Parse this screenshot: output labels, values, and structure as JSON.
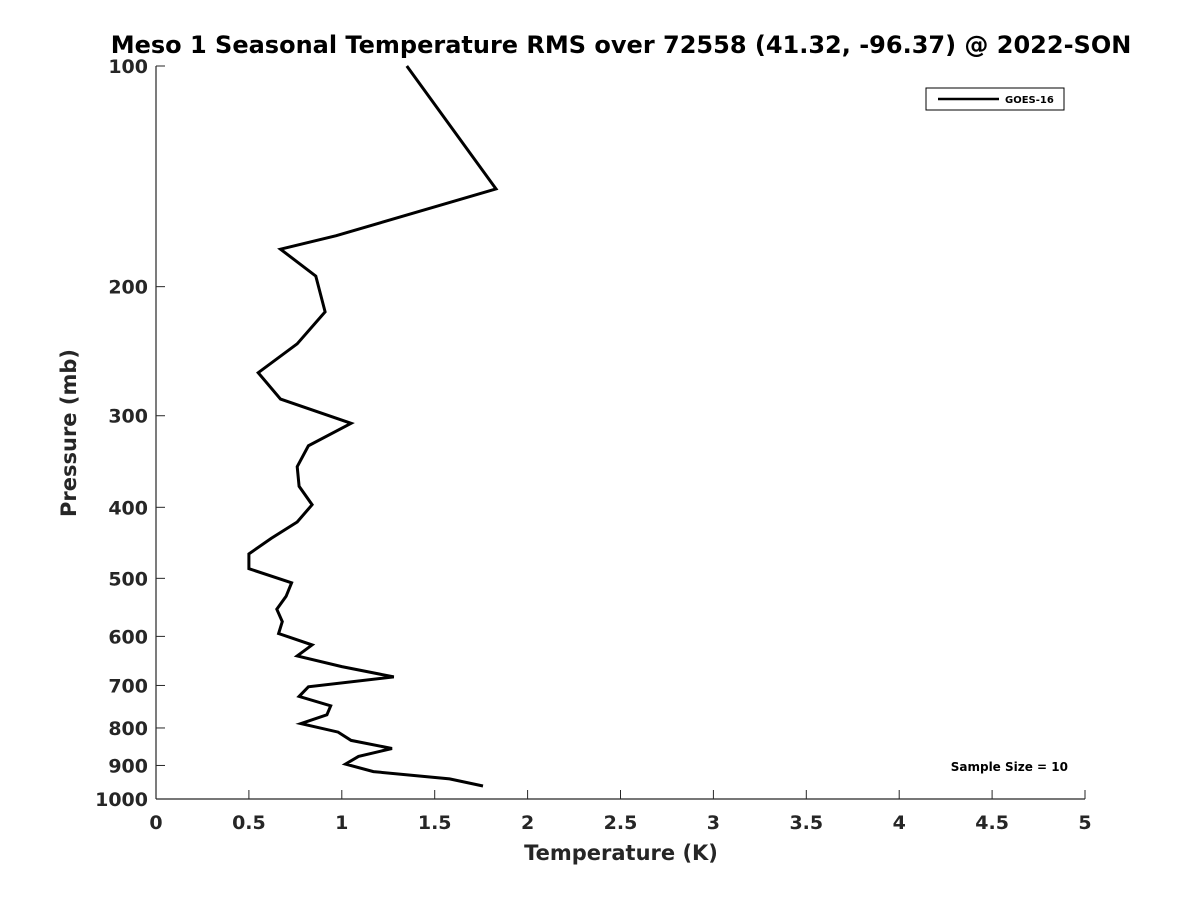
{
  "chart_data": {
    "type": "line",
    "title": "Meso 1 Seasonal Temperature RMS over 72558 (41.32, -96.37) @ 2022-SON",
    "xlabel": "Temperature (K)",
    "ylabel": "Pressure (mb)",
    "xlim": [
      0,
      5
    ],
    "ylim": [
      100,
      1000
    ],
    "y_scale": "log",
    "y_reversed": true,
    "x_ticks": [
      "0",
      "0.5",
      "1",
      "1.5",
      "2",
      "2.5",
      "3",
      "3.5",
      "4",
      "4.5",
      "5"
    ],
    "y_ticks": [
      "100",
      "200",
      "300",
      "400",
      "500",
      "600",
      "700",
      "800",
      "900",
      "1000"
    ],
    "grid": false,
    "legend_position": "top-right",
    "annotation": "Sample Size = 10",
    "series": [
      {
        "name": "GOES-16",
        "color": "#000000",
        "points": [
          {
            "x": 1.35,
            "y": 100
          },
          {
            "x": 1.83,
            "y": 150
          },
          {
            "x": 0.97,
            "y": 175
          },
          {
            "x": 0.67,
            "y": 183
          },
          {
            "x": 0.86,
            "y": 200
          },
          {
            "x": 0.91,
            "y": 225
          },
          {
            "x": 0.76,
            "y": 250
          },
          {
            "x": 0.55,
            "y": 275
          },
          {
            "x": 0.67,
            "y": 300
          },
          {
            "x": 1.05,
            "y": 325
          },
          {
            "x": 0.82,
            "y": 350
          },
          {
            "x": 0.76,
            "y": 375
          },
          {
            "x": 0.77,
            "y": 400
          },
          {
            "x": 0.84,
            "y": 425
          },
          {
            "x": 0.76,
            "y": 450
          },
          {
            "x": 0.62,
            "y": 475
          },
          {
            "x": 0.5,
            "y": 500
          },
          {
            "x": 0.5,
            "y": 525
          },
          {
            "x": 0.73,
            "y": 550
          },
          {
            "x": 0.7,
            "y": 575
          },
          {
            "x": 0.65,
            "y": 600
          },
          {
            "x": 0.68,
            "y": 625
          },
          {
            "x": 0.66,
            "y": 650
          },
          {
            "x": 0.84,
            "y": 675
          },
          {
            "x": 0.76,
            "y": 700
          },
          {
            "x": 1.0,
            "y": 725
          },
          {
            "x": 1.28,
            "y": 750
          },
          {
            "x": 0.82,
            "y": 775
          },
          {
            "x": 0.77,
            "y": 800
          },
          {
            "x": 0.94,
            "y": 825
          },
          {
            "x": 0.92,
            "y": 850
          },
          {
            "x": 0.78,
            "y": 875
          },
          {
            "x": 0.98,
            "y": 900
          },
          {
            "x": 1.05,
            "y": 925
          },
          {
            "x": 1.27,
            "y": 950
          },
          {
            "x": 1.09,
            "y": 975
          },
          {
            "x": 1.02,
            "y": 1000
          },
          {
            "x": 1.17,
            "y": 1025
          },
          {
            "x": 1.58,
            "y": 1050
          },
          {
            "x": 1.76,
            "y": 1075
          }
        ]
      }
    ]
  }
}
